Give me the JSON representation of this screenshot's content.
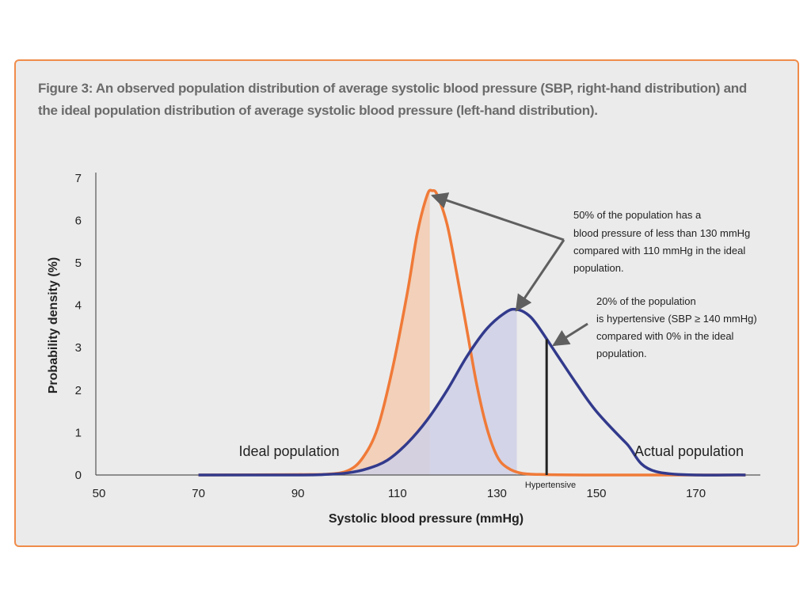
{
  "figure": {
    "title": "Figure 3: An observed population distribution of average systolic blood pressure (SBP, right-hand distribution) and the ideal population distribution of average systolic blood pressure (left-hand distribution)."
  },
  "colors": {
    "ideal_line": "#f07a38",
    "ideal_fill": "#f3cbb0",
    "actual_line": "#323a8c",
    "actual_fill": "#cfd0e6",
    "arrow": "#5f5f5f",
    "panel_border": "#f08c4b",
    "panel_bg": "#ebebeb"
  },
  "chart_data": {
    "type": "line",
    "xlabel": "Systolic blood pressure (mmHg)",
    "ylabel": "Probability density (%)",
    "xlim": [
      50,
      180
    ],
    "ylim": [
      0,
      7
    ],
    "x_ticks": [
      50,
      70,
      90,
      110,
      130,
      150,
      170
    ],
    "y_ticks": [
      0,
      1,
      2,
      3,
      4,
      5,
      6,
      7
    ],
    "grid": false,
    "series": [
      {
        "name": "Ideal population",
        "x": [
          70,
          90,
          96,
          100,
          103,
          106,
          109,
          112,
          114,
          116,
          117,
          118,
          120,
          122,
          124,
          126,
          128,
          130,
          132,
          135,
          140,
          150,
          160,
          180
        ],
        "y": [
          0,
          0.01,
          0.02,
          0.1,
          0.4,
          1.1,
          2.5,
          4.3,
          5.7,
          6.6,
          6.7,
          6.6,
          5.9,
          4.7,
          3.4,
          2.1,
          1.1,
          0.45,
          0.18,
          0.04,
          0.01,
          0,
          0,
          0
        ],
        "shaded_below": 116.5
      },
      {
        "name": "Actual population",
        "x": [
          70,
          90,
          95,
          100,
          104,
          108,
          112,
          116,
          120,
          124,
          128,
          132,
          134,
          136,
          138,
          142,
          146,
          150,
          156,
          162,
          180
        ],
        "y": [
          0,
          0,
          0.01,
          0.05,
          0.15,
          0.35,
          0.75,
          1.3,
          2.0,
          2.8,
          3.45,
          3.85,
          3.9,
          3.8,
          3.55,
          2.85,
          2.15,
          1.5,
          0.75,
          0.08,
          0
        ],
        "shaded_below": 134
      }
    ],
    "labels": {
      "ideal": "Ideal population",
      "actual": "Actual population",
      "hypertensive": "Hypertensive",
      "hypertensive_x": 140
    },
    "annotations": [
      {
        "lines": [
          "50% of the population has a",
          "blood pressure of less than 130 mmHg",
          "compared with 110 mmHg in the ideal",
          "population."
        ]
      },
      {
        "lines": [
          "20% of the population",
          "is hypertensive (SBP  ≥ 140 mmHg)",
          "compared with 0% in the ideal",
          "population."
        ]
      }
    ]
  }
}
